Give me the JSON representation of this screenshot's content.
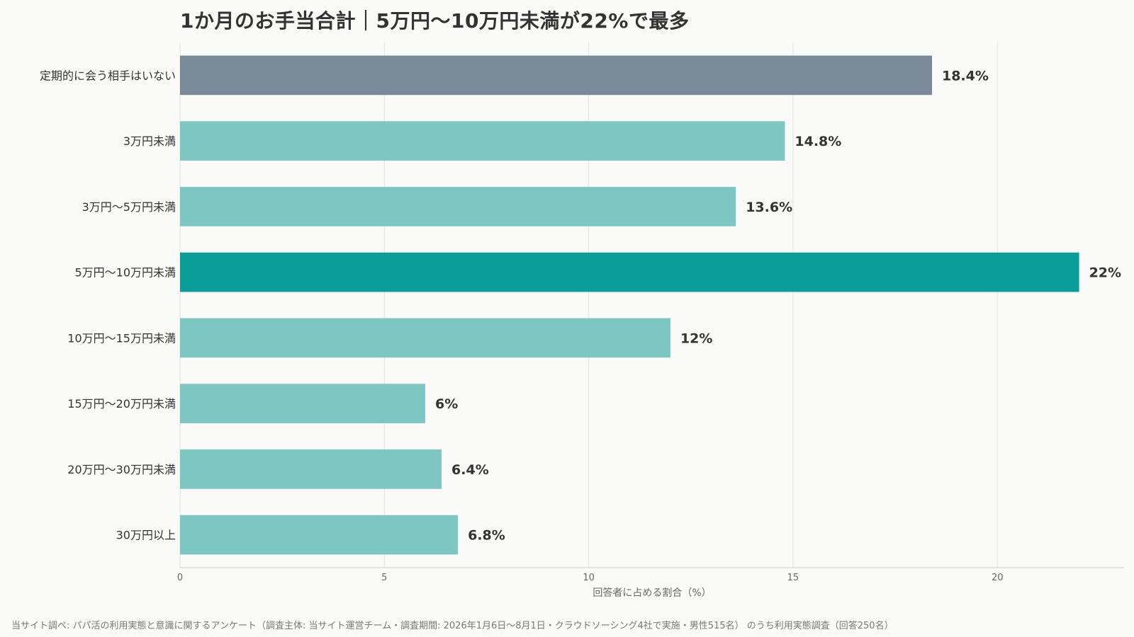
{
  "chart_data": {
    "type": "bar",
    "orientation": "horizontal",
    "title": "1か月のお手当合計｜5万円〜10万円未満が22%で最多",
    "xlabel": "回答者に占める割合（%）",
    "ylabel": "",
    "xlim": [
      0,
      23.1
    ],
    "x_ticks": [
      0,
      5,
      10,
      15,
      20
    ],
    "grid": "vertical",
    "categories": [
      "定期的に会う相手はいない",
      "3万円未満",
      "3万円〜5万円未満",
      "5万円〜10万円未満",
      "10万円〜15万円未満",
      "15万円〜20万円未満",
      "20万円〜30万円未満",
      "30万円以上"
    ],
    "values": [
      18.4,
      14.8,
      13.6,
      22,
      12,
      6,
      6.4,
      6.8
    ],
    "value_labels": [
      "18.4%",
      "14.8%",
      "13.6%",
      "22%",
      "12%",
      "6%",
      "6.4%",
      "6.8%"
    ],
    "colors": {
      "none": "#7b8a99",
      "default": "#7ec6c2",
      "highlight": "#0b9e98",
      "grid": "#e3e3e3",
      "axis": "#cccccc"
    },
    "bar_roles": [
      "none",
      "default",
      "default",
      "highlight",
      "default",
      "default",
      "default",
      "default"
    ]
  },
  "source": "当サイト調べ: パパ活の利用実態と意識に関するアンケート（調査主体: 当サイト運営チーム・調査期間: 2026年1月6日〜8月1日・クラウドソーシング4社で実施・男性515名） のうち利用実態調査（回答250名）"
}
